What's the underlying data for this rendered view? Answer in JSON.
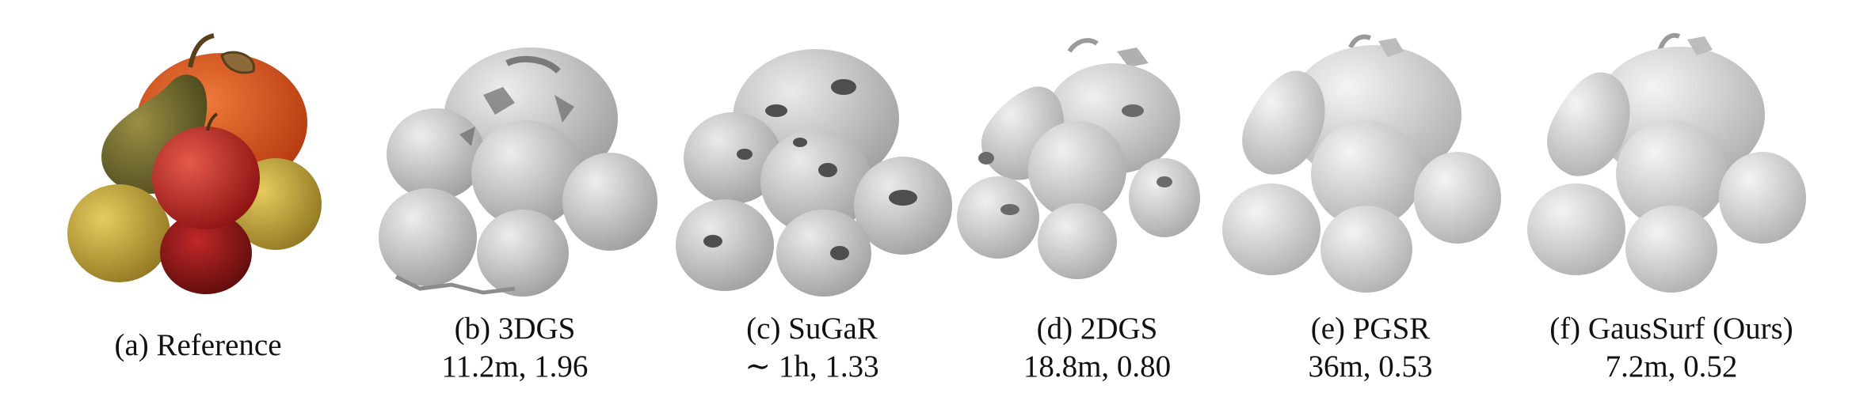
{
  "figure": {
    "panels": [
      {
        "id": "a",
        "label": "(a) Reference",
        "stats": "",
        "kind": "reference"
      },
      {
        "id": "b",
        "label": "(b) 3DGS",
        "stats": "11.2m, 1.96",
        "kind": "mesh",
        "quality": "noisy"
      },
      {
        "id": "c",
        "label": "(c) SuGaR",
        "stats": "∼ 1h, 1.33",
        "kind": "mesh",
        "quality": "holes"
      },
      {
        "id": "d",
        "label": "(d) 2DGS",
        "stats": "18.8m, 0.80",
        "kind": "mesh",
        "quality": "fragmented"
      },
      {
        "id": "e",
        "label": "(e) PGSR",
        "stats": "36m, 0.53",
        "kind": "mesh",
        "quality": "smooth"
      },
      {
        "id": "f",
        "label": "(f) GausSurf (Ours)",
        "stats": "7.2m, 0.52",
        "kind": "mesh",
        "quality": "smooth"
      }
    ],
    "colors": {
      "pumpkin": "#d6491c",
      "pear": "#6f6a2c",
      "red_apple": "#b52222",
      "yellow_apple": "#c9a83a",
      "dark_apple": "#8e1515",
      "mesh_light": "#e2e2e2",
      "mesh_mid": "#bdbdbd",
      "mesh_dark": "#8c8c8c"
    }
  }
}
